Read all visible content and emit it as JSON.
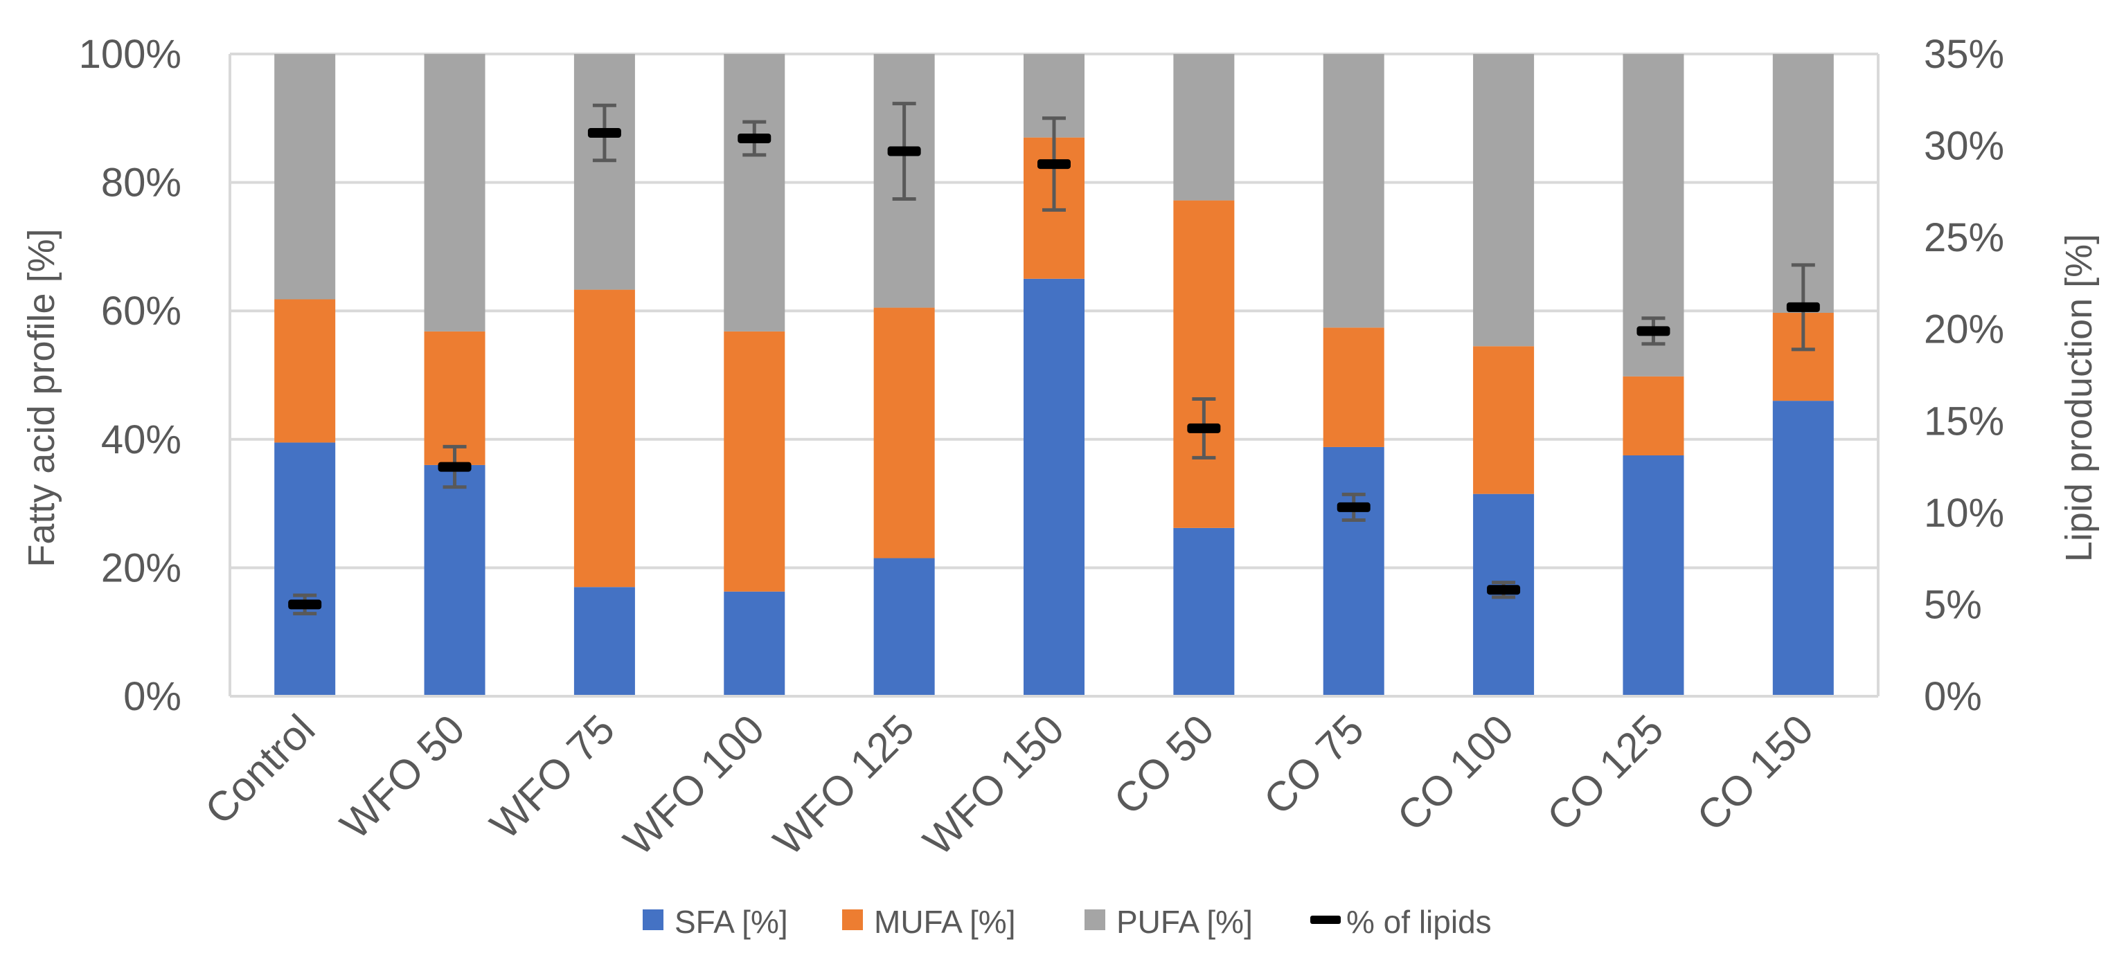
{
  "chart_data": {
    "type": "bar",
    "stacked": true,
    "title": "",
    "categories": [
      "Control",
      "WFO 50",
      "WFO 75",
      "WFO 100",
      "WFO 125",
      "WFO 150",
      "CO 50",
      "CO 75",
      "CO 100",
      "CO 125",
      "CO 150"
    ],
    "series": [
      {
        "name": "SFA [%]",
        "axis": "left",
        "color": "#4472c4",
        "values": [
          39.5,
          36.0,
          17.0,
          16.3,
          21.5,
          65.0,
          26.2,
          38.8,
          31.5,
          37.5,
          46.0
        ]
      },
      {
        "name": "MUFA [%]",
        "axis": "left",
        "color": "#ed7d31",
        "values": [
          22.3,
          20.8,
          46.3,
          40.5,
          39.0,
          22.0,
          51.0,
          18.6,
          23.0,
          12.3,
          13.7
        ]
      },
      {
        "name": "PUFA [%]",
        "axis": "left",
        "color": "#a5a5a5",
        "values": [
          38.2,
          43.2,
          36.7,
          43.2,
          39.5,
          13.0,
          22.8,
          42.6,
          45.5,
          50.2,
          40.3
        ]
      }
    ],
    "lipid_series": {
      "name": "% of lipids",
      "axis": "right",
      "color": "#000000",
      "values": [
        5.0,
        12.5,
        30.7,
        30.4,
        29.7,
        29.0,
        14.6,
        10.3,
        5.8,
        19.9,
        21.2
      ],
      "error": [
        0.5,
        1.1,
        1.5,
        0.9,
        2.6,
        2.5,
        1.6,
        0.7,
        0.4,
        0.7,
        2.3
      ]
    },
    "ylabel": "Fatty acid profile [%]",
    "ylabel_right": "Lipid production [%]",
    "ylim": [
      0,
      100
    ],
    "ylim_right": [
      0,
      35
    ],
    "yticks": [
      "0%",
      "20%",
      "40%",
      "60%",
      "80%",
      "100%"
    ],
    "yticks_right": [
      "0%",
      "5%",
      "10%",
      "15%",
      "20%",
      "25%",
      "30%",
      "35%"
    ],
    "grid": true,
    "legend": {
      "placement": "bottom",
      "entries": [
        "SFA [%]",
        "MUFA [%]",
        "PUFA [%]",
        "% of lipids"
      ]
    }
  }
}
